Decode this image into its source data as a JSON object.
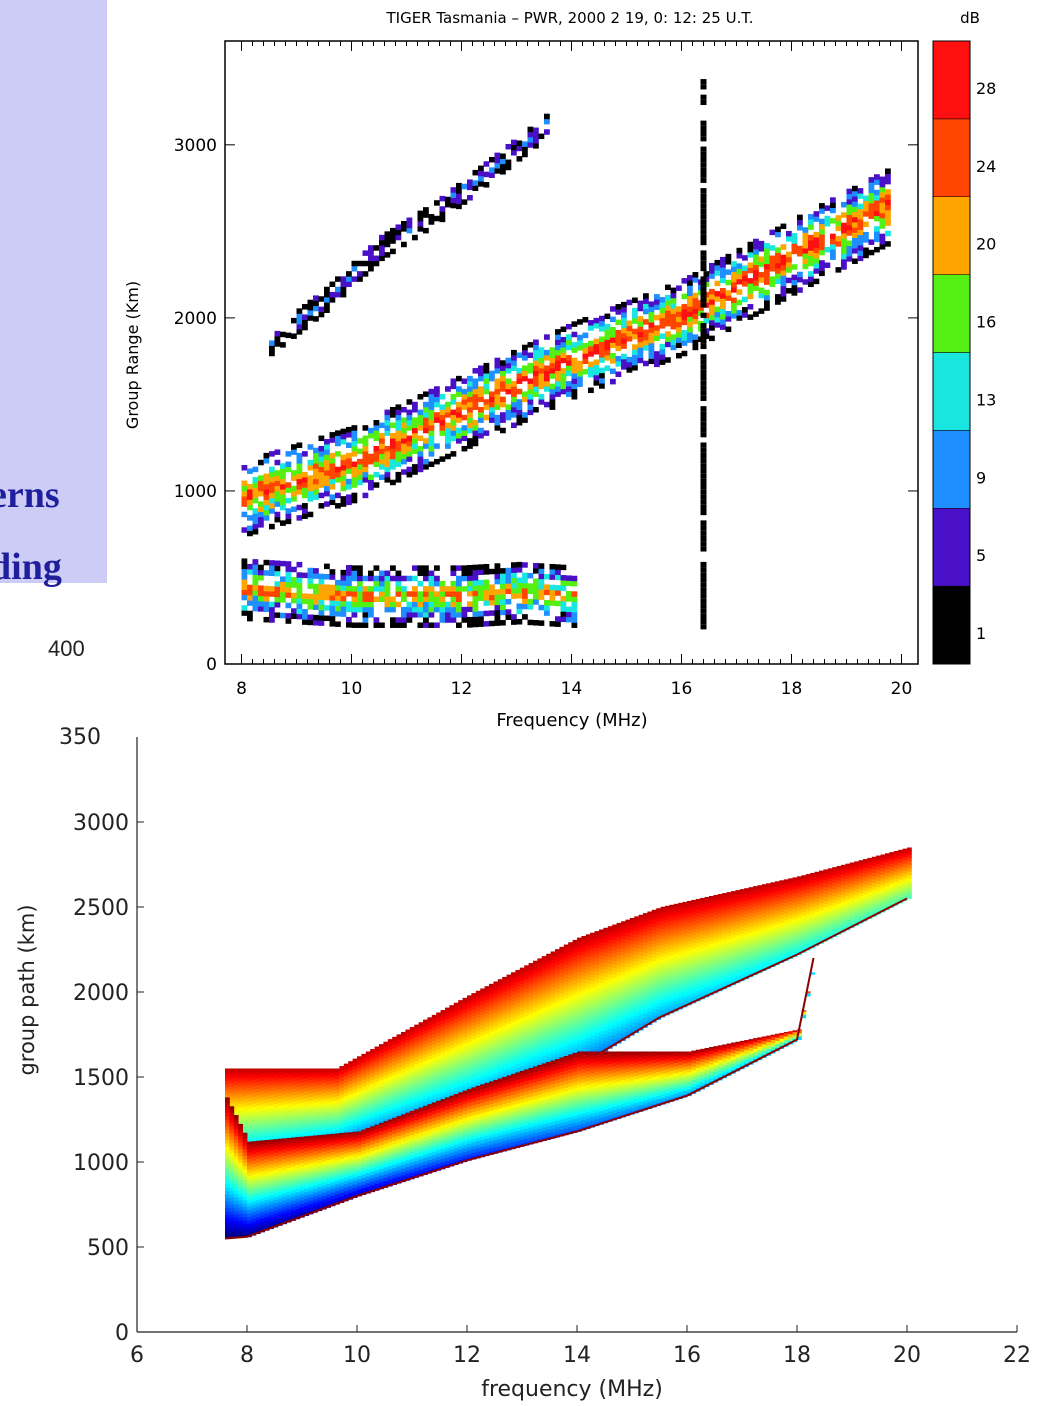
{
  "slide": {
    "fragment_line1": "erns",
    "fragment_line2": "ding",
    "stray_label": "400"
  },
  "chart_data": [
    {
      "type": "heatmap",
      "title": "TIGER Tasmania – PWR, 2000 2 19, 0: 12: 25 U.T.",
      "xlabel": "Frequency (MHz)",
      "ylabel": "Group Range (Km)",
      "xlim": [
        7.7,
        20.3
      ],
      "ylim": [
        0,
        3600
      ],
      "xticks": [
        8,
        10,
        12,
        14,
        16,
        18,
        20
      ],
      "yticks": [
        0,
        1000,
        2000,
        3000
      ],
      "colorbar": {
        "label": "dB",
        "levels": [
          1,
          5,
          9,
          13,
          16,
          20,
          24,
          28
        ],
        "colors": [
          "#000000",
          "#4a10c8",
          "#1f8fff",
          "#1ae6e0",
          "#54f013",
          "#ffa500",
          "#ff4500",
          "#ff1010"
        ]
      },
      "traces": [
        {
          "name": "main-echo",
          "x": [
            8,
            10,
            12,
            14,
            16,
            18,
            19.8
          ],
          "y_center": [
            950,
            1150,
            1450,
            1750,
            2000,
            2350,
            2650
          ],
          "half_width": 220,
          "peak_dB": 28
        },
        {
          "name": "upper-hop",
          "x": [
            8.5,
            9.5,
            10.5,
            11.5,
            12.5,
            13.5
          ],
          "y_center": [
            1850,
            2100,
            2400,
            2600,
            2850,
            3100
          ],
          "half_width": 70,
          "peak_dB": 9
        },
        {
          "name": "near-range-clutter",
          "x": [
            8,
            9,
            10,
            11,
            12,
            13,
            14
          ],
          "y_center": [
            420,
            400,
            380,
            380,
            380,
            400,
            380
          ],
          "half_width": 170,
          "peak_dB": 24
        },
        {
          "name": "interference-line",
          "x": [
            16.4,
            16.4
          ],
          "y_center": [
            200,
            3400
          ],
          "half_width": 0,
          "peak_dB": 1
        }
      ]
    },
    {
      "type": "heatmap",
      "title": "",
      "xlabel": "frequency (MHz)",
      "ylabel": "group path (km)",
      "xlim": [
        6,
        22
      ],
      "ylim": [
        0,
        3500
      ],
      "xticks": [
        6,
        8,
        10,
        12,
        14,
        16,
        18,
        20,
        22
      ],
      "yticks": [
        0,
        500,
        1000,
        1500,
        2000,
        2500,
        3000
      ],
      "extra_tick_label": "350",
      "colormap": [
        "#00007f",
        "#0000ff",
        "#007fff",
        "#00ffff",
        "#7fff7f",
        "#ffff00",
        "#ff7f00",
        "#ff0000",
        "#7f0000"
      ],
      "regions": [
        {
          "name": "upper-sheet",
          "x": [
            7.6,
            9.6,
            12,
            14,
            15.5,
            18,
            20
          ],
          "y_top": [
            1550,
            1550,
            1980,
            2320,
            2500,
            2680,
            2850
          ],
          "y_bottom": [
            800,
            990,
            1270,
            1560,
            1850,
            2220,
            2550
          ]
        },
        {
          "name": "lower-sheet",
          "x": [
            7.6,
            8,
            10,
            12,
            14,
            16,
            18,
            18.3
          ],
          "y_top": [
            1380,
            1120,
            1180,
            1430,
            1650,
            1650,
            1780,
            2200
          ],
          "y_bottom": [
            550,
            560,
            800,
            1010,
            1180,
            1390,
            1720,
            2200
          ]
        }
      ]
    }
  ]
}
